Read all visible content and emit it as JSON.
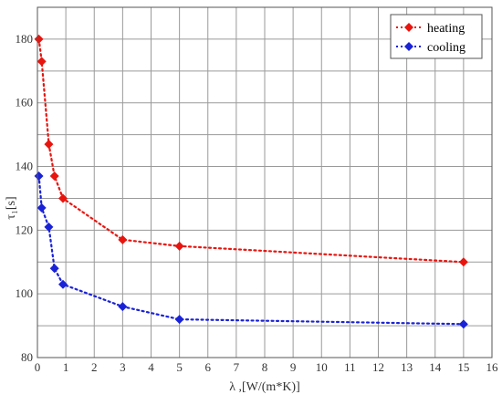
{
  "chart_data": {
    "type": "scatter",
    "xlabel": "λ ,[W/(m*K)]",
    "ylabel": "τ₁[s]",
    "xlim": [
      0,
      16
    ],
    "ylim": [
      80,
      190
    ],
    "xticks": [
      0,
      1,
      2,
      3,
      4,
      5,
      6,
      7,
      8,
      9,
      10,
      11,
      12,
      13,
      14,
      15,
      16
    ],
    "yticks": [
      80,
      100,
      120,
      140,
      160,
      180
    ],
    "grid": true,
    "legend_position": "top-right",
    "line_style": "dotted with diamond markers",
    "series": [
      {
        "name": "heating",
        "color": "#e8150f",
        "x": [
          0.05,
          0.15,
          0.4,
          0.6,
          0.9,
          3,
          5,
          15
        ],
        "y": [
          180,
          173,
          147,
          137,
          130,
          117,
          115,
          110
        ]
      },
      {
        "name": "cooling",
        "color": "#1a22d8",
        "x": [
          0.05,
          0.15,
          0.4,
          0.6,
          0.9,
          3,
          5,
          15
        ],
        "y": [
          137,
          127,
          121,
          108,
          103,
          96,
          92,
          90.5
        ]
      }
    ]
  }
}
